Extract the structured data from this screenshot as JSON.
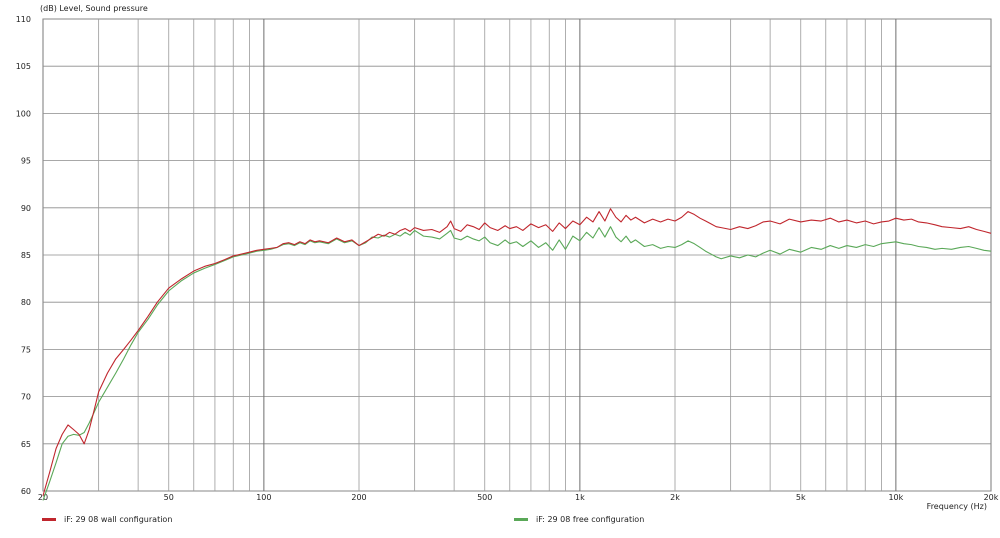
{
  "chart_data": {
    "type": "line",
    "ylabel": "(dB)  Level, Sound pressure",
    "xlabel": "Frequency  (Hz)",
    "x_scale": "log",
    "xlim": [
      20,
      20000
    ],
    "ylim": [
      60,
      110
    ],
    "grid": true,
    "legend_position": "bottom",
    "y_ticks": [
      60,
      65,
      70,
      75,
      80,
      85,
      90,
      95,
      100,
      105,
      110
    ],
    "x_ticks": [
      {
        "value": 20,
        "label": "20"
      },
      {
        "value": 50,
        "label": "50"
      },
      {
        "value": 100,
        "label": "100"
      },
      {
        "value": 200,
        "label": "200"
      },
      {
        "value": 500,
        "label": "500"
      },
      {
        "value": 1000,
        "label": "1k"
      },
      {
        "value": 2000,
        "label": "2k"
      },
      {
        "value": 5000,
        "label": "5k"
      },
      {
        "value": 10000,
        "label": "10k"
      },
      {
        "value": 20000,
        "label": "20k"
      }
    ],
    "series": [
      {
        "name": "iF: 29 08 wall configuration",
        "color": "#c0262d",
        "points": [
          [
            20,
            59.5
          ],
          [
            21,
            62
          ],
          [
            22,
            64.5
          ],
          [
            23,
            66
          ],
          [
            24,
            67
          ],
          [
            25,
            66.5
          ],
          [
            26,
            66
          ],
          [
            27,
            65
          ],
          [
            28,
            66.5
          ],
          [
            29,
            68.5
          ],
          [
            30,
            70.5
          ],
          [
            32,
            72.5
          ],
          [
            34,
            74
          ],
          [
            36,
            75
          ],
          [
            38,
            76
          ],
          [
            40,
            77
          ],
          [
            43,
            78.5
          ],
          [
            46,
            80
          ],
          [
            50,
            81.5
          ],
          [
            55,
            82.5
          ],
          [
            60,
            83.3
          ],
          [
            65,
            83.8
          ],
          [
            70,
            84.1
          ],
          [
            75,
            84.5
          ],
          [
            80,
            84.9
          ],
          [
            85,
            85.1
          ],
          [
            90,
            85.3
          ],
          [
            95,
            85.5
          ],
          [
            100,
            85.6
          ],
          [
            105,
            85.7
          ],
          [
            110,
            85.8
          ],
          [
            115,
            86.2
          ],
          [
            120,
            86.3
          ],
          [
            125,
            86.1
          ],
          [
            130,
            86.4
          ],
          [
            135,
            86.2
          ],
          [
            140,
            86.6
          ],
          [
            145,
            86.4
          ],
          [
            150,
            86.5
          ],
          [
            160,
            86.3
          ],
          [
            170,
            86.8
          ],
          [
            180,
            86.4
          ],
          [
            190,
            86.6
          ],
          [
            200,
            86.0
          ],
          [
            210,
            86.4
          ],
          [
            220,
            86.8
          ],
          [
            230,
            87.2
          ],
          [
            240,
            87.0
          ],
          [
            250,
            87.4
          ],
          [
            260,
            87.2
          ],
          [
            270,
            87.6
          ],
          [
            280,
            87.8
          ],
          [
            290,
            87.5
          ],
          [
            300,
            87.9
          ],
          [
            320,
            87.6
          ],
          [
            340,
            87.7
          ],
          [
            360,
            87.4
          ],
          [
            380,
            88.0
          ],
          [
            390,
            88.6
          ],
          [
            400,
            87.8
          ],
          [
            420,
            87.5
          ],
          [
            440,
            88.2
          ],
          [
            460,
            88.0
          ],
          [
            480,
            87.7
          ],
          [
            500,
            88.4
          ],
          [
            520,
            87.9
          ],
          [
            550,
            87.6
          ],
          [
            580,
            88.1
          ],
          [
            600,
            87.8
          ],
          [
            630,
            88.0
          ],
          [
            660,
            87.6
          ],
          [
            700,
            88.3
          ],
          [
            740,
            87.9
          ],
          [
            780,
            88.2
          ],
          [
            820,
            87.5
          ],
          [
            860,
            88.4
          ],
          [
            900,
            87.8
          ],
          [
            950,
            88.6
          ],
          [
            1000,
            88.2
          ],
          [
            1050,
            89.0
          ],
          [
            1100,
            88.5
          ],
          [
            1150,
            89.6
          ],
          [
            1200,
            88.6
          ],
          [
            1250,
            89.9
          ],
          [
            1300,
            89.0
          ],
          [
            1350,
            88.5
          ],
          [
            1400,
            89.2
          ],
          [
            1450,
            88.7
          ],
          [
            1500,
            89.0
          ],
          [
            1600,
            88.4
          ],
          [
            1700,
            88.8
          ],
          [
            1800,
            88.5
          ],
          [
            1900,
            88.8
          ],
          [
            2000,
            88.6
          ],
          [
            2100,
            89.0
          ],
          [
            2200,
            89.6
          ],
          [
            2300,
            89.3
          ],
          [
            2400,
            88.9
          ],
          [
            2500,
            88.6
          ],
          [
            2600,
            88.3
          ],
          [
            2700,
            88.0
          ],
          [
            2800,
            87.9
          ],
          [
            3000,
            87.7
          ],
          [
            3200,
            88.0
          ],
          [
            3400,
            87.8
          ],
          [
            3600,
            88.1
          ],
          [
            3800,
            88.5
          ],
          [
            4000,
            88.6
          ],
          [
            4300,
            88.3
          ],
          [
            4600,
            88.8
          ],
          [
            5000,
            88.5
          ],
          [
            5400,
            88.7
          ],
          [
            5800,
            88.6
          ],
          [
            6200,
            88.9
          ],
          [
            6600,
            88.5
          ],
          [
            7000,
            88.7
          ],
          [
            7500,
            88.4
          ],
          [
            8000,
            88.6
          ],
          [
            8500,
            88.3
          ],
          [
            9000,
            88.5
          ],
          [
            9500,
            88.6
          ],
          [
            10000,
            88.9
          ],
          [
            10600,
            88.7
          ],
          [
            11200,
            88.8
          ],
          [
            11800,
            88.5
          ],
          [
            12500,
            88.4
          ],
          [
            13300,
            88.2
          ],
          [
            14000,
            88.0
          ],
          [
            15000,
            87.9
          ],
          [
            16000,
            87.8
          ],
          [
            17000,
            88.0
          ],
          [
            18000,
            87.7
          ],
          [
            19000,
            87.5
          ],
          [
            20000,
            87.3
          ]
        ]
      },
      {
        "name": "iF: 29 08 free configuration",
        "color": "#5aa858",
        "points": [
          [
            20,
            59.0
          ],
          [
            21,
            61
          ],
          [
            22,
            63
          ],
          [
            23,
            65
          ],
          [
            24,
            65.8
          ],
          [
            25,
            66.0
          ],
          [
            26,
            65.9
          ],
          [
            27,
            66.2
          ],
          [
            28,
            67.2
          ],
          [
            29,
            68.3
          ],
          [
            30,
            69.4
          ],
          [
            32,
            71.0
          ],
          [
            34,
            72.5
          ],
          [
            36,
            74.0
          ],
          [
            38,
            75.5
          ],
          [
            40,
            76.8
          ],
          [
            43,
            78.2
          ],
          [
            46,
            79.7
          ],
          [
            50,
            81.2
          ],
          [
            55,
            82.3
          ],
          [
            60,
            83.1
          ],
          [
            65,
            83.6
          ],
          [
            70,
            84.0
          ],
          [
            75,
            84.4
          ],
          [
            80,
            84.8
          ],
          [
            85,
            85.0
          ],
          [
            90,
            85.2
          ],
          [
            95,
            85.4
          ],
          [
            100,
            85.5
          ],
          [
            105,
            85.6
          ],
          [
            110,
            85.8
          ],
          [
            115,
            86.1
          ],
          [
            120,
            86.2
          ],
          [
            125,
            86.0
          ],
          [
            130,
            86.3
          ],
          [
            135,
            86.1
          ],
          [
            140,
            86.5
          ],
          [
            145,
            86.3
          ],
          [
            150,
            86.4
          ],
          [
            160,
            86.2
          ],
          [
            170,
            86.7
          ],
          [
            180,
            86.3
          ],
          [
            190,
            86.5
          ],
          [
            200,
            86.0
          ],
          [
            210,
            86.3
          ],
          [
            220,
            86.9
          ],
          [
            230,
            86.8
          ],
          [
            240,
            87.1
          ],
          [
            250,
            86.9
          ],
          [
            260,
            87.2
          ],
          [
            270,
            87.0
          ],
          [
            280,
            87.4
          ],
          [
            290,
            87.1
          ],
          [
            300,
            87.6
          ],
          [
            320,
            87.0
          ],
          [
            340,
            86.9
          ],
          [
            360,
            86.7
          ],
          [
            380,
            87.3
          ],
          [
            390,
            87.6
          ],
          [
            400,
            86.8
          ],
          [
            420,
            86.6
          ],
          [
            440,
            87.0
          ],
          [
            460,
            86.7
          ],
          [
            480,
            86.5
          ],
          [
            500,
            86.9
          ],
          [
            520,
            86.3
          ],
          [
            550,
            86.0
          ],
          [
            580,
            86.6
          ],
          [
            600,
            86.2
          ],
          [
            630,
            86.4
          ],
          [
            660,
            85.9
          ],
          [
            700,
            86.5
          ],
          [
            740,
            85.8
          ],
          [
            780,
            86.3
          ],
          [
            820,
            85.5
          ],
          [
            860,
            86.6
          ],
          [
            900,
            85.6
          ],
          [
            950,
            87.0
          ],
          [
            1000,
            86.5
          ],
          [
            1050,
            87.4
          ],
          [
            1100,
            86.8
          ],
          [
            1150,
            87.9
          ],
          [
            1200,
            86.9
          ],
          [
            1250,
            88.0
          ],
          [
            1300,
            86.9
          ],
          [
            1350,
            86.4
          ],
          [
            1400,
            87.0
          ],
          [
            1450,
            86.3
          ],
          [
            1500,
            86.6
          ],
          [
            1600,
            85.9
          ],
          [
            1700,
            86.1
          ],
          [
            1800,
            85.7
          ],
          [
            1900,
            85.9
          ],
          [
            2000,
            85.8
          ],
          [
            2100,
            86.1
          ],
          [
            2200,
            86.5
          ],
          [
            2300,
            86.2
          ],
          [
            2400,
            85.8
          ],
          [
            2500,
            85.4
          ],
          [
            2600,
            85.1
          ],
          [
            2700,
            84.8
          ],
          [
            2800,
            84.6
          ],
          [
            3000,
            84.9
          ],
          [
            3200,
            84.7
          ],
          [
            3400,
            85.0
          ],
          [
            3600,
            84.8
          ],
          [
            3800,
            85.2
          ],
          [
            4000,
            85.5
          ],
          [
            4300,
            85.1
          ],
          [
            4600,
            85.6
          ],
          [
            5000,
            85.3
          ],
          [
            5400,
            85.8
          ],
          [
            5800,
            85.6
          ],
          [
            6200,
            86.0
          ],
          [
            6600,
            85.7
          ],
          [
            7000,
            86.0
          ],
          [
            7500,
            85.8
          ],
          [
            8000,
            86.1
          ],
          [
            8500,
            85.9
          ],
          [
            9000,
            86.2
          ],
          [
            9500,
            86.3
          ],
          [
            10000,
            86.4
          ],
          [
            10600,
            86.2
          ],
          [
            11200,
            86.1
          ],
          [
            11800,
            85.9
          ],
          [
            12500,
            85.8
          ],
          [
            13300,
            85.6
          ],
          [
            14000,
            85.7
          ],
          [
            15000,
            85.6
          ],
          [
            16000,
            85.8
          ],
          [
            17000,
            85.9
          ],
          [
            18000,
            85.7
          ],
          [
            19000,
            85.5
          ],
          [
            20000,
            85.4
          ]
        ]
      }
    ]
  }
}
